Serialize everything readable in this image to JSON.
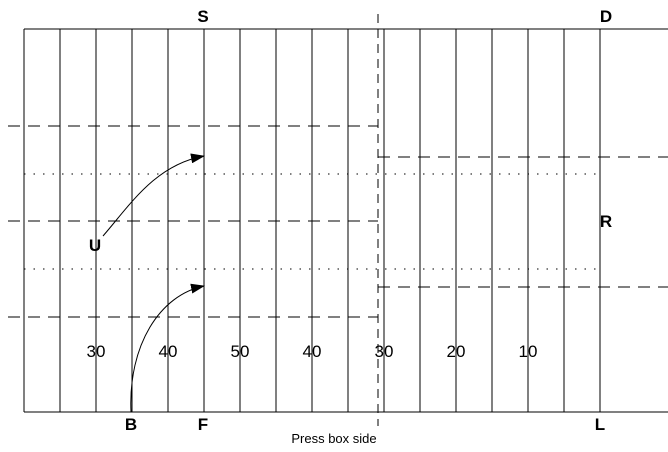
{
  "officials": {
    "S": "S",
    "D": "D",
    "U": "U",
    "R": "R",
    "B": "B",
    "F": "F",
    "L": "L"
  },
  "yard_numbers": [
    "30",
    "40",
    "50",
    "40",
    "30",
    "20",
    "10"
  ],
  "caption": "Press box side"
}
